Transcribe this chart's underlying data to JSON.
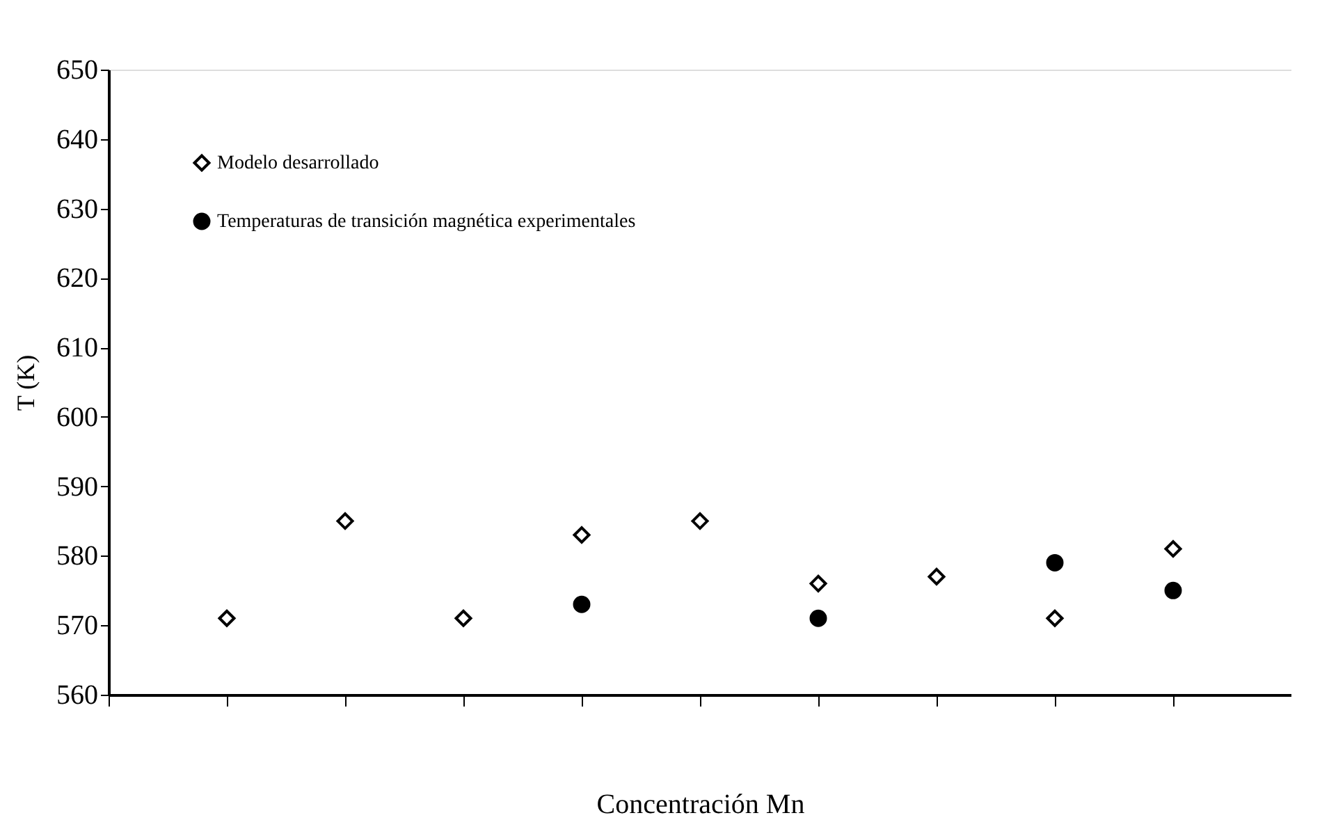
{
  "chart_data": {
    "type": "scatter",
    "xlabel": "Concentración Mn",
    "ylabel": "T (K)",
    "categories": [
      null,
      null,
      null,
      null,
      null,
      null,
      null,
      null,
      null
    ],
    "series": [
      {
        "name": "Modelo desarrollado",
        "color": "#000000",
        "marker": "diamond",
        "values": [
          571,
          585,
          571,
          583,
          585,
          576,
          577,
          571,
          581
        ]
      },
      {
        "name": "Temperaturas de transición magnética experimentales",
        "color": "#000000",
        "marker": "circle",
        "values": [
          null,
          null,
          null,
          573,
          null,
          571,
          null,
          579,
          575
        ]
      }
    ],
    "ylim": [
      560,
      650
    ],
    "yticks": [
      560,
      570,
      580,
      590,
      600,
      610,
      620,
      630,
      640,
      650
    ],
    "grid": false,
    "legend": "top left",
    "tick_labels": "y"
  }
}
